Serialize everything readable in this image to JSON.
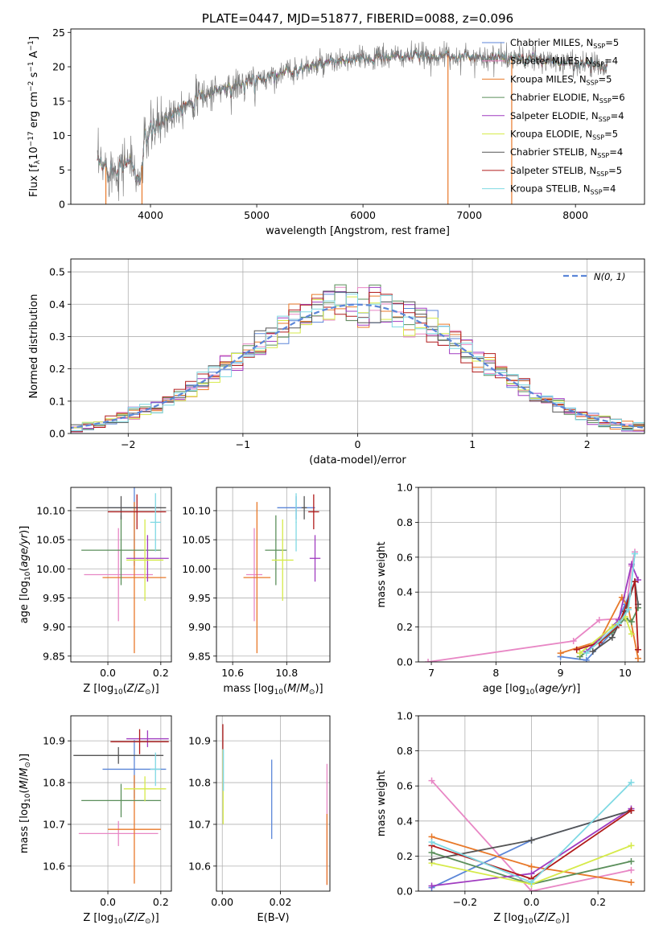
{
  "colors": {
    "chab_miles": "#5b86d8",
    "salp_miles": "#e887c5",
    "krou_miles": "#e8792a",
    "chab_elodie": "#5b8f5b",
    "salp_elodie": "#a03cc0",
    "krou_elodie": "#d6ea4a",
    "chab_stelib": "#555555",
    "salp_stelib": "#b11b1b",
    "krou_stelib": "#7fd9e3",
    "gauss": "#5b86d8",
    "grid": "#b0b0b0"
  },
  "chart_data": [
    {
      "id": "spectrum",
      "type": "line",
      "title": "PLATE=0447, MJD=51877, FIBERID=0088, z=0.096",
      "xlabel": "wavelength [Angstrom, rest frame]",
      "ylabel": "Flux [f_λ10^-17 erg cm^-2 s^-1 A^-1]",
      "xlim": [
        3250,
        8650
      ],
      "ylim": [
        0,
        25.5
      ],
      "xticks": [
        4000,
        5000,
        6000,
        7000,
        8000
      ],
      "yticks": [
        0,
        5,
        10,
        15,
        20,
        25
      ],
      "grid": false,
      "legend_position": "top-right",
      "legend": [
        {
          "key": "chab_miles",
          "text": "Chabrier MILES, N",
          "sub": "SSP",
          "tail": "=5"
        },
        {
          "key": "salp_miles",
          "text": "Salpeter MILES, N",
          "sub": "SSP",
          "tail": "=4"
        },
        {
          "key": "krou_miles",
          "text": "Kroupa MILES, N",
          "sub": "SSP",
          "tail": "=5"
        },
        {
          "key": "chab_elodie",
          "text": "Chabrier ELODIE, N",
          "sub": "SSP",
          "tail": "=6"
        },
        {
          "key": "salp_elodie",
          "text": "Salpeter ELODIE, N",
          "sub": "SSP",
          "tail": "=4"
        },
        {
          "key": "krou_elodie",
          "text": "Kroupa ELODIE, N",
          "sub": "SSP",
          "tail": "=5"
        },
        {
          "key": "chab_stelib",
          "text": "Chabrier STELIB, N",
          "sub": "SSP",
          "tail": "=4"
        },
        {
          "key": "salp_stelib",
          "text": "Salpeter STELIB, N",
          "sub": "SSP",
          "tail": "=5"
        },
        {
          "key": "krou_stelib",
          "text": "Kroupa STELIB, N",
          "sub": "SSP",
          "tail": "=4"
        }
      ],
      "continuum": [
        [
          3500,
          5.8
        ],
        [
          3650,
          5.0
        ],
        [
          3800,
          6.5
        ],
        [
          3900,
          3.0
        ],
        [
          3950,
          9.5
        ],
        [
          4100,
          12.0
        ],
        [
          4300,
          14.5
        ],
        [
          4600,
          16.5
        ],
        [
          4900,
          17.5
        ],
        [
          5200,
          19.0
        ],
        [
          5500,
          20.0
        ],
        [
          5800,
          20.8
        ],
        [
          6100,
          21.3
        ],
        [
          6500,
          21.6
        ],
        [
          7000,
          21.5
        ],
        [
          7500,
          21.2
        ],
        [
          8000,
          20.5
        ],
        [
          8300,
          20.2
        ]
      ],
      "data_gaps": [
        3580,
        3920,
        6800,
        7400
      ]
    },
    {
      "id": "residual_histogram",
      "type": "line",
      "xlabel": "(data-model)/error",
      "ylabel": "Normed distribution",
      "xlim": [
        -2.5,
        2.5
      ],
      "ylim": [
        0,
        0.54
      ],
      "xticks": [
        -2,
        -1,
        0,
        1,
        2
      ],
      "yticks": [
        0.0,
        0.1,
        0.2,
        0.3,
        0.4,
        0.5
      ],
      "grid": true,
      "bin_width": 0.1,
      "legend_position": "top-right",
      "legend": [
        {
          "key": "gauss",
          "text": "N(0, 1)"
        }
      ]
    },
    {
      "id": "age_vs_Z",
      "type": "scatter",
      "xlabel": "Z [log10(Z/Z⊙)]",
      "ylabel": "age  [log10(age/yr)]",
      "xlim": [
        -0.14,
        0.24
      ],
      "ylim": [
        9.84,
        10.14
      ],
      "xticks": [
        0.0,
        0.2
      ],
      "yticks": [
        9.85,
        9.9,
        9.95,
        10.0,
        10.05,
        10.1
      ],
      "grid": true,
      "points": [
        {
          "key": "chab_miles",
          "x": 0.1,
          "y": 10.105,
          "xerr": 0.1,
          "yerr": 0.1
        },
        {
          "key": "salp_miles",
          "x": 0.04,
          "y": 9.99,
          "xerr": 0.13,
          "yerr": 0.08
        },
        {
          "key": "krou_miles",
          "x": 0.1,
          "y": 9.985,
          "xerr": 0.12,
          "yerr": 0.13
        },
        {
          "key": "chab_elodie",
          "x": 0.05,
          "y": 10.032,
          "xerr": 0.15,
          "yerr": 0.06
        },
        {
          "key": "salp_elodie",
          "x": 0.15,
          "y": 10.018,
          "xerr": 0.08,
          "yerr": 0.04
        },
        {
          "key": "krou_elodie",
          "x": 0.14,
          "y": 10.015,
          "xerr": 0.07,
          "yerr": 0.07
        },
        {
          "key": "chab_stelib",
          "x": 0.05,
          "y": 10.105,
          "xerr": 0.17,
          "yerr": 0.02
        },
        {
          "key": "salp_stelib",
          "x": 0.11,
          "y": 10.098,
          "xerr": 0.11,
          "yerr": 0.03
        },
        {
          "key": "krou_stelib",
          "x": 0.18,
          "y": 10.08,
          "xerr": 0.02,
          "yerr": 0.05
        }
      ]
    },
    {
      "id": "age_vs_mass",
      "type": "scatter",
      "xlabel": "mass [log10(M/M⊙)]",
      "ylabel": "",
      "xlim": [
        10.54,
        10.96
      ],
      "ylim": [
        9.84,
        10.14
      ],
      "xticks": [
        10.6,
        10.8
      ],
      "yticks": [
        9.85,
        9.9,
        9.95,
        10.0,
        10.05,
        10.1
      ],
      "grid": true,
      "points": [
        {
          "key": "chab_miles",
          "x": 10.835,
          "y": 10.105,
          "xerr": 0.07,
          "yerr": 0.02
        },
        {
          "key": "salp_miles",
          "x": 10.68,
          "y": 9.99,
          "xerr": 0.03,
          "yerr": 0.08
        },
        {
          "key": "krou_miles",
          "x": 10.69,
          "y": 9.985,
          "xerr": 0.05,
          "yerr": 0.13
        },
        {
          "key": "chab_elodie",
          "x": 10.76,
          "y": 10.032,
          "xerr": 0.04,
          "yerr": 0.06
        },
        {
          "key": "salp_elodie",
          "x": 10.905,
          "y": 10.018,
          "xerr": 0.02,
          "yerr": 0.04
        },
        {
          "key": "krou_elodie",
          "x": 10.785,
          "y": 10.015,
          "xerr": 0.04,
          "yerr": 0.07
        },
        {
          "key": "chab_stelib",
          "x": 10.865,
          "y": 10.105,
          "xerr": 0.01,
          "yerr": 0.02
        },
        {
          "key": "salp_stelib",
          "x": 10.9,
          "y": 10.098,
          "xerr": 0.02,
          "yerr": 0.03
        },
        {
          "key": "krou_stelib",
          "x": 10.835,
          "y": 10.08,
          "xerr": 0.002,
          "yerr": 0.05
        }
      ]
    },
    {
      "id": "weight_vs_age",
      "type": "line",
      "xlabel": "age  [log10(age/yr)]",
      "ylabel": "mass weight",
      "xlim": [
        6.8,
        10.3
      ],
      "ylim": [
        0,
        1.0
      ],
      "xticks": [
        7,
        8,
        9,
        10
      ],
      "yticks": [
        0.0,
        0.2,
        0.4,
        0.6,
        0.8,
        1.0
      ],
      "grid": true,
      "series": [
        {
          "key": "salp_miles",
          "x": [
            6.95,
            9.2,
            9.6,
            10.0,
            10.1,
            10.15
          ],
          "y": [
            0.0,
            0.12,
            0.24,
            0.25,
            0.55,
            0.63
          ]
        },
        {
          "key": "chab_miles",
          "x": [
            9.0,
            9.4,
            9.8,
            10.0,
            10.15
          ],
          "y": [
            0.03,
            0.01,
            0.17,
            0.33,
            0.46
          ]
        },
        {
          "key": "krou_miles",
          "x": [
            9.0,
            9.6,
            9.95,
            10.05,
            10.2
          ],
          "y": [
            0.05,
            0.12,
            0.37,
            0.31,
            0.02
          ]
        },
        {
          "key": "chab_elodie",
          "x": [
            9.3,
            9.8,
            10.0,
            10.1,
            10.2
          ],
          "y": [
            0.03,
            0.17,
            0.25,
            0.23,
            0.31
          ]
        },
        {
          "key": "salp_elodie",
          "x": [
            9.4,
            9.9,
            10.1,
            10.2
          ],
          "y": [
            0.06,
            0.24,
            0.56,
            0.47
          ]
        },
        {
          "key": "krou_elodie",
          "x": [
            9.3,
            9.8,
            10.0,
            10.1
          ],
          "y": [
            0.05,
            0.2,
            0.26,
            0.16
          ]
        },
        {
          "key": "chab_stelib",
          "x": [
            9.5,
            9.8,
            10.0,
            10.15,
            10.2
          ],
          "y": [
            0.06,
            0.14,
            0.29,
            0.46,
            0.33
          ]
        },
        {
          "key": "salp_stelib",
          "x": [
            9.25,
            9.6,
            9.9,
            10.15,
            10.2
          ],
          "y": [
            0.07,
            0.11,
            0.21,
            0.46,
            0.07
          ]
        },
        {
          "key": "krou_stelib",
          "x": [
            9.4,
            9.9,
            10.05,
            10.15
          ],
          "y": [
            0.05,
            0.22,
            0.3,
            0.62
          ]
        }
      ]
    },
    {
      "id": "mass_vs_Z",
      "type": "scatter",
      "xlabel": "Z [log10(Z/Z⊙)]",
      "ylabel": "mass [log10(M/M⊙)]",
      "xlim": [
        -0.14,
        0.24
      ],
      "ylim": [
        10.54,
        10.96
      ],
      "xticks": [
        0.0,
        0.2
      ],
      "yticks": [
        10.6,
        10.7,
        10.8,
        10.9
      ],
      "grid": true,
      "points": [
        {
          "key": "chab_miles",
          "x": 0.1,
          "y": 10.832,
          "xerr": 0.12,
          "yerr": 0.07
        },
        {
          "key": "salp_miles",
          "x": 0.04,
          "y": 10.678,
          "xerr": 0.15,
          "yerr": 0.03
        },
        {
          "key": "krou_miles",
          "x": 0.1,
          "y": 10.688,
          "xerr": 0.1,
          "yerr": 0.13
        },
        {
          "key": "chab_elodie",
          "x": 0.05,
          "y": 10.757,
          "xerr": 0.15,
          "yerr": 0.04
        },
        {
          "key": "salp_elodie",
          "x": 0.15,
          "y": 10.905,
          "xerr": 0.08,
          "yerr": 0.02
        },
        {
          "key": "krou_elodie",
          "x": 0.14,
          "y": 10.785,
          "xerr": 0.08,
          "yerr": 0.03
        },
        {
          "key": "chab_stelib",
          "x": 0.04,
          "y": 10.865,
          "xerr": 0.17,
          "yerr": 0.02
        },
        {
          "key": "salp_stelib",
          "x": 0.12,
          "y": 10.898,
          "xerr": 0.11,
          "yerr": 0.03
        },
        {
          "key": "krou_stelib",
          "x": 0.18,
          "y": 10.832,
          "xerr": 0.02,
          "yerr": 0.04
        }
      ]
    },
    {
      "id": "mass_vs_ebv",
      "type": "scatter",
      "xlabel": "E(B-V)",
      "ylabel": "",
      "xlim": [
        -0.002,
        0.037
      ],
      "ylim": [
        10.54,
        10.96
      ],
      "xticks": [
        0.0,
        0.02
      ],
      "yticks": [
        10.6,
        10.7,
        10.8,
        10.9
      ],
      "grid": true,
      "points": [
        {
          "key": "chab_miles",
          "x": 0.017,
          "y": 10.76,
          "xerr": 0,
          "yerr": 0.095
        },
        {
          "key": "salp_miles",
          "x": 0.036,
          "y": 10.7,
          "xerr": 0,
          "yerr": 0.145
        },
        {
          "key": "krou_miles",
          "x": 0.036,
          "y": 10.64,
          "xerr": 0,
          "yerr": 0.085
        },
        {
          "key": "salp_stelib",
          "x": 0.0002,
          "y": 10.91,
          "xerr": 0,
          "yerr": 0.03
        },
        {
          "key": "krou_elodie",
          "x": 0.0003,
          "y": 10.79,
          "xerr": 0,
          "yerr": 0.09
        },
        {
          "key": "krou_stelib",
          "x": 0.0004,
          "y": 10.83,
          "xerr": 0,
          "yerr": 0.05
        }
      ]
    },
    {
      "id": "weight_vs_Z",
      "type": "line",
      "xlabel": "Z [log10(Z/Z⊙)]",
      "ylabel": "mass weight",
      "xlim": [
        -0.34,
        0.34
      ],
      "ylim": [
        0,
        1.0
      ],
      "xticks": [
        -0.2,
        0.0,
        0.2
      ],
      "yticks": [
        0.0,
        0.2,
        0.4,
        0.6,
        0.8,
        1.0
      ],
      "grid": true,
      "series": [
        {
          "key": "salp_miles",
          "x": [
            -0.3,
            0.0,
            0.3
          ],
          "y": [
            0.63,
            0.0,
            0.12
          ]
        },
        {
          "key": "chab_miles",
          "x": [
            -0.3,
            0.0,
            0.3
          ],
          "y": [
            0.02,
            0.29,
            0.46
          ]
        },
        {
          "key": "krou_miles",
          "x": [
            -0.3,
            0.0,
            0.3
          ],
          "y": [
            0.31,
            0.14,
            0.05
          ]
        },
        {
          "key": "chab_elodie",
          "x": [
            -0.3,
            0.0,
            0.3
          ],
          "y": [
            0.22,
            0.04,
            0.17
          ]
        },
        {
          "key": "salp_elodie",
          "x": [
            -0.3,
            0.0,
            0.3
          ],
          "y": [
            0.03,
            0.1,
            0.47
          ]
        },
        {
          "key": "krou_elodie",
          "x": [
            -0.3,
            0.0,
            0.3
          ],
          "y": [
            0.16,
            0.04,
            0.26
          ]
        },
        {
          "key": "chab_stelib",
          "x": [
            -0.3,
            0.0,
            0.3
          ],
          "y": [
            0.18,
            0.29,
            0.46
          ]
        },
        {
          "key": "salp_stelib",
          "x": [
            -0.3,
            0.0,
            0.3
          ],
          "y": [
            0.26,
            0.07,
            0.46
          ]
        },
        {
          "key": "krou_stelib",
          "x": [
            -0.3,
            0.0,
            0.3
          ],
          "y": [
            0.28,
            0.05,
            0.62
          ]
        }
      ]
    }
  ]
}
